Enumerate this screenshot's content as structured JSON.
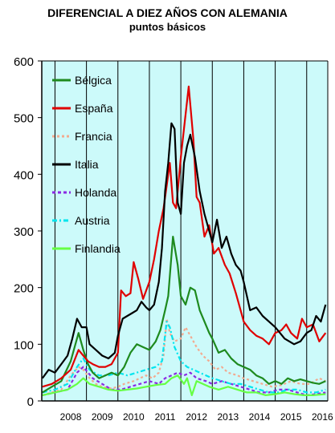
{
  "chart_data": {
    "type": "line",
    "title": "DIFERENCIAL A DIEZ AÑOS CON ALEMANIA",
    "subtitle": "puntos básicos",
    "xlabel": "",
    "ylabel": "",
    "x_tick_labels": [
      "2008",
      "2009",
      "2010",
      "2011",
      "2012",
      "2013",
      "2014",
      "2015",
      "2016"
    ],
    "y_ticks": [
      0,
      100,
      200,
      300,
      400,
      500,
      600
    ],
    "xlim": [
      2007.58,
      2016.67
    ],
    "ylim": [
      0,
      600
    ],
    "background": "#ccfafa",
    "grid": "vertical",
    "legend_position": "upper-left",
    "series": [
      {
        "name": "Bélgica",
        "color": "#1e8a1e",
        "dash": "solid",
        "x": [
          2007.6,
          2007.9,
          2008.2,
          2008.5,
          2008.75,
          2008.9,
          2009.05,
          2009.2,
          2009.4,
          2009.6,
          2009.8,
          2010.0,
          2010.2,
          2010.4,
          2010.6,
          2010.8,
          2011.0,
          2011.2,
          2011.35,
          2011.5,
          2011.6,
          2011.75,
          2011.9,
          2012.0,
          2012.15,
          2012.3,
          2012.45,
          2012.6,
          2012.75,
          2012.9,
          2013.0,
          2013.2,
          2013.4,
          2013.6,
          2013.8,
          2014.0,
          2014.2,
          2014.4,
          2014.6,
          2014.8,
          2015.0,
          2015.2,
          2015.4,
          2015.6,
          2015.8,
          2016.0,
          2016.2,
          2016.4,
          2016.6
        ],
        "values": [
          15,
          25,
          35,
          70,
          120,
          90,
          65,
          50,
          40,
          45,
          50,
          45,
          60,
          85,
          100,
          95,
          90,
          105,
          125,
          160,
          185,
          290,
          240,
          185,
          170,
          200,
          195,
          160,
          140,
          120,
          110,
          85,
          90,
          75,
          65,
          60,
          55,
          45,
          40,
          30,
          35,
          30,
          40,
          35,
          38,
          35,
          32,
          30,
          35
        ]
      },
      {
        "name": "España",
        "color": "#e00000",
        "dash": "solid",
        "x": [
          2007.6,
          2007.9,
          2008.2,
          2008.5,
          2008.75,
          2008.9,
          2009.05,
          2009.2,
          2009.4,
          2009.6,
          2009.8,
          2010.0,
          2010.1,
          2010.25,
          2010.4,
          2010.5,
          2010.65,
          2010.8,
          2010.9,
          2011.0,
          2011.15,
          2011.3,
          2011.45,
          2011.55,
          2011.65,
          2011.75,
          2011.85,
          2012.0,
          2012.1,
          2012.25,
          2012.4,
          2012.5,
          2012.6,
          2012.75,
          2012.9,
          2013.05,
          2013.2,
          2013.4,
          2013.55,
          2013.75,
          2013.9,
          2014.0,
          2014.2,
          2014.4,
          2014.6,
          2014.8,
          2015.0,
          2015.2,
          2015.35,
          2015.5,
          2015.7,
          2015.85,
          2016.0,
          2016.2,
          2016.4,
          2016.6
        ],
        "values": [
          25,
          30,
          40,
          55,
          90,
          80,
          70,
          65,
          60,
          60,
          65,
          85,
          195,
          185,
          190,
          245,
          215,
          180,
          195,
          210,
          250,
          300,
          340,
          380,
          420,
          350,
          340,
          430,
          480,
          555,
          460,
          360,
          350,
          290,
          310,
          260,
          270,
          240,
          225,
          190,
          160,
          140,
          125,
          115,
          110,
          100,
          120,
          125,
          135,
          120,
          110,
          145,
          130,
          135,
          105,
          120
        ]
      },
      {
        "name": "Francia",
        "color": "#f2aa90",
        "dash": "3 3",
        "x": [
          2007.6,
          2007.9,
          2008.2,
          2008.5,
          2008.75,
          2008.9,
          2009.1,
          2009.3,
          2009.5,
          2009.8,
          2010.0,
          2010.2,
          2010.5,
          2010.7,
          2010.9,
          2011.1,
          2011.3,
          2011.45,
          2011.55,
          2011.65,
          2011.8,
          2012.0,
          2012.15,
          2012.3,
          2012.5,
          2012.7,
          2012.9,
          2013.1,
          2013.3,
          2013.5,
          2013.8,
          2014.0,
          2014.3,
          2014.6,
          2014.9,
          2015.2,
          2015.5,
          2015.8,
          2016.1,
          2016.4,
          2016.6
        ],
        "values": [
          10,
          15,
          20,
          45,
          60,
          55,
          40,
          30,
          25,
          22,
          25,
          30,
          35,
          40,
          45,
          40,
          50,
          80,
          145,
          120,
          105,
          110,
          130,
          115,
          95,
          80,
          70,
          55,
          60,
          50,
          45,
          40,
          35,
          30,
          25,
          28,
          35,
          30,
          30,
          40,
          35
        ]
      },
      {
        "name": "Italia",
        "color": "#000000",
        "dash": "solid",
        "x": [
          2007.6,
          2007.8,
          2008.0,
          2008.2,
          2008.4,
          2008.55,
          2008.7,
          2008.85,
          2009.0,
          2009.1,
          2009.3,
          2009.5,
          2009.7,
          2009.9,
          2010.0,
          2010.15,
          2010.3,
          2010.45,
          2010.6,
          2010.75,
          2010.9,
          2011.0,
          2011.15,
          2011.3,
          2011.4,
          2011.5,
          2011.6,
          2011.7,
          2011.8,
          2011.9,
          2012.0,
          2012.1,
          2012.2,
          2012.3,
          2012.45,
          2012.6,
          2012.75,
          2012.9,
          2013.0,
          2013.15,
          2013.3,
          2013.45,
          2013.6,
          2013.75,
          2013.9,
          2014.0,
          2014.2,
          2014.4,
          2014.6,
          2014.8,
          2015.0,
          2015.15,
          2015.3,
          2015.45,
          2015.6,
          2015.8,
          2016.0,
          2016.15,
          2016.3,
          2016.45,
          2016.6
        ],
        "values": [
          40,
          55,
          50,
          65,
          80,
          110,
          145,
          130,
          130,
          100,
          90,
          80,
          75,
          85,
          115,
          145,
          150,
          155,
          160,
          175,
          165,
          160,
          170,
          210,
          270,
          370,
          420,
          490,
          480,
          350,
          330,
          420,
          450,
          470,
          430,
          370,
          330,
          300,
          280,
          320,
          270,
          290,
          260,
          240,
          230,
          210,
          160,
          165,
          150,
          140,
          130,
          120,
          110,
          105,
          100,
          105,
          120,
          125,
          150,
          140,
          170
        ]
      },
      {
        "name": "Holanda",
        "color": "#8a2be2",
        "dash": "4 3",
        "x": [
          2007.6,
          2008.0,
          2008.4,
          2008.7,
          2008.9,
          2009.2,
          2009.5,
          2009.8,
          2010.1,
          2010.4,
          2010.7,
          2011.0,
          2011.3,
          2011.5,
          2011.7,
          2011.9,
          2012.1,
          2012.3,
          2012.5,
          2012.8,
          2013.0,
          2013.3,
          2013.6,
          2013.9,
          2014.2,
          2014.5,
          2014.8,
          2015.1,
          2015.4,
          2015.7,
          2016.0,
          2016.3,
          2016.6
        ],
        "values": [
          10,
          15,
          20,
          50,
          60,
          40,
          30,
          20,
          20,
          25,
          30,
          35,
          30,
          40,
          45,
          50,
          45,
          50,
          40,
          35,
          30,
          35,
          30,
          25,
          20,
          15,
          15,
          20,
          20,
          15,
          10,
          12,
          15
        ]
      },
      {
        "name": "Austria",
        "color": "#00e5ee",
        "dash": "6 3 2 3",
        "x": [
          2007.6,
          2008.0,
          2008.4,
          2008.7,
          2008.9,
          2009.1,
          2009.4,
          2009.7,
          2010.0,
          2010.3,
          2010.6,
          2010.9,
          2011.2,
          2011.4,
          2011.55,
          2011.65,
          2011.8,
          2012.0,
          2012.2,
          2012.4,
          2012.6,
          2012.8,
          2013.0,
          2013.3,
          2013.6,
          2013.9,
          2014.2,
          2014.5,
          2014.8,
          2015.1,
          2015.4,
          2015.7,
          2016.0,
          2016.3,
          2016.6
        ],
        "values": [
          15,
          20,
          30,
          60,
          75,
          55,
          45,
          45,
          50,
          45,
          50,
          55,
          60,
          70,
          140,
          130,
          95,
          70,
          60,
          55,
          50,
          45,
          40,
          35,
          30,
          30,
          25,
          20,
          15,
          15,
          20,
          20,
          15,
          15,
          20
        ]
      },
      {
        "name": "Finlandia",
        "color": "#66ff44",
        "dash": "solid",
        "x": [
          2007.6,
          2008.0,
          2008.4,
          2008.7,
          2008.9,
          2009.1,
          2009.4,
          2009.7,
          2010.0,
          2010.3,
          2010.6,
          2010.9,
          2011.2,
          2011.5,
          2011.7,
          2011.9,
          2012.1,
          2012.2,
          2012.35,
          2012.5,
          2012.7,
          2012.9,
          2013.2,
          2013.5,
          2013.8,
          2014.1,
          2014.4,
          2014.7,
          2015.0,
          2015.3,
          2015.6,
          2015.9,
          2016.2,
          2016.6
        ],
        "values": [
          10,
          15,
          20,
          30,
          40,
          30,
          25,
          20,
          18,
          20,
          22,
          25,
          28,
          30,
          40,
          45,
          30,
          40,
          10,
          35,
          30,
          25,
          20,
          25,
          20,
          15,
          15,
          10,
          12,
          15,
          12,
          10,
          10,
          12
        ]
      }
    ]
  }
}
